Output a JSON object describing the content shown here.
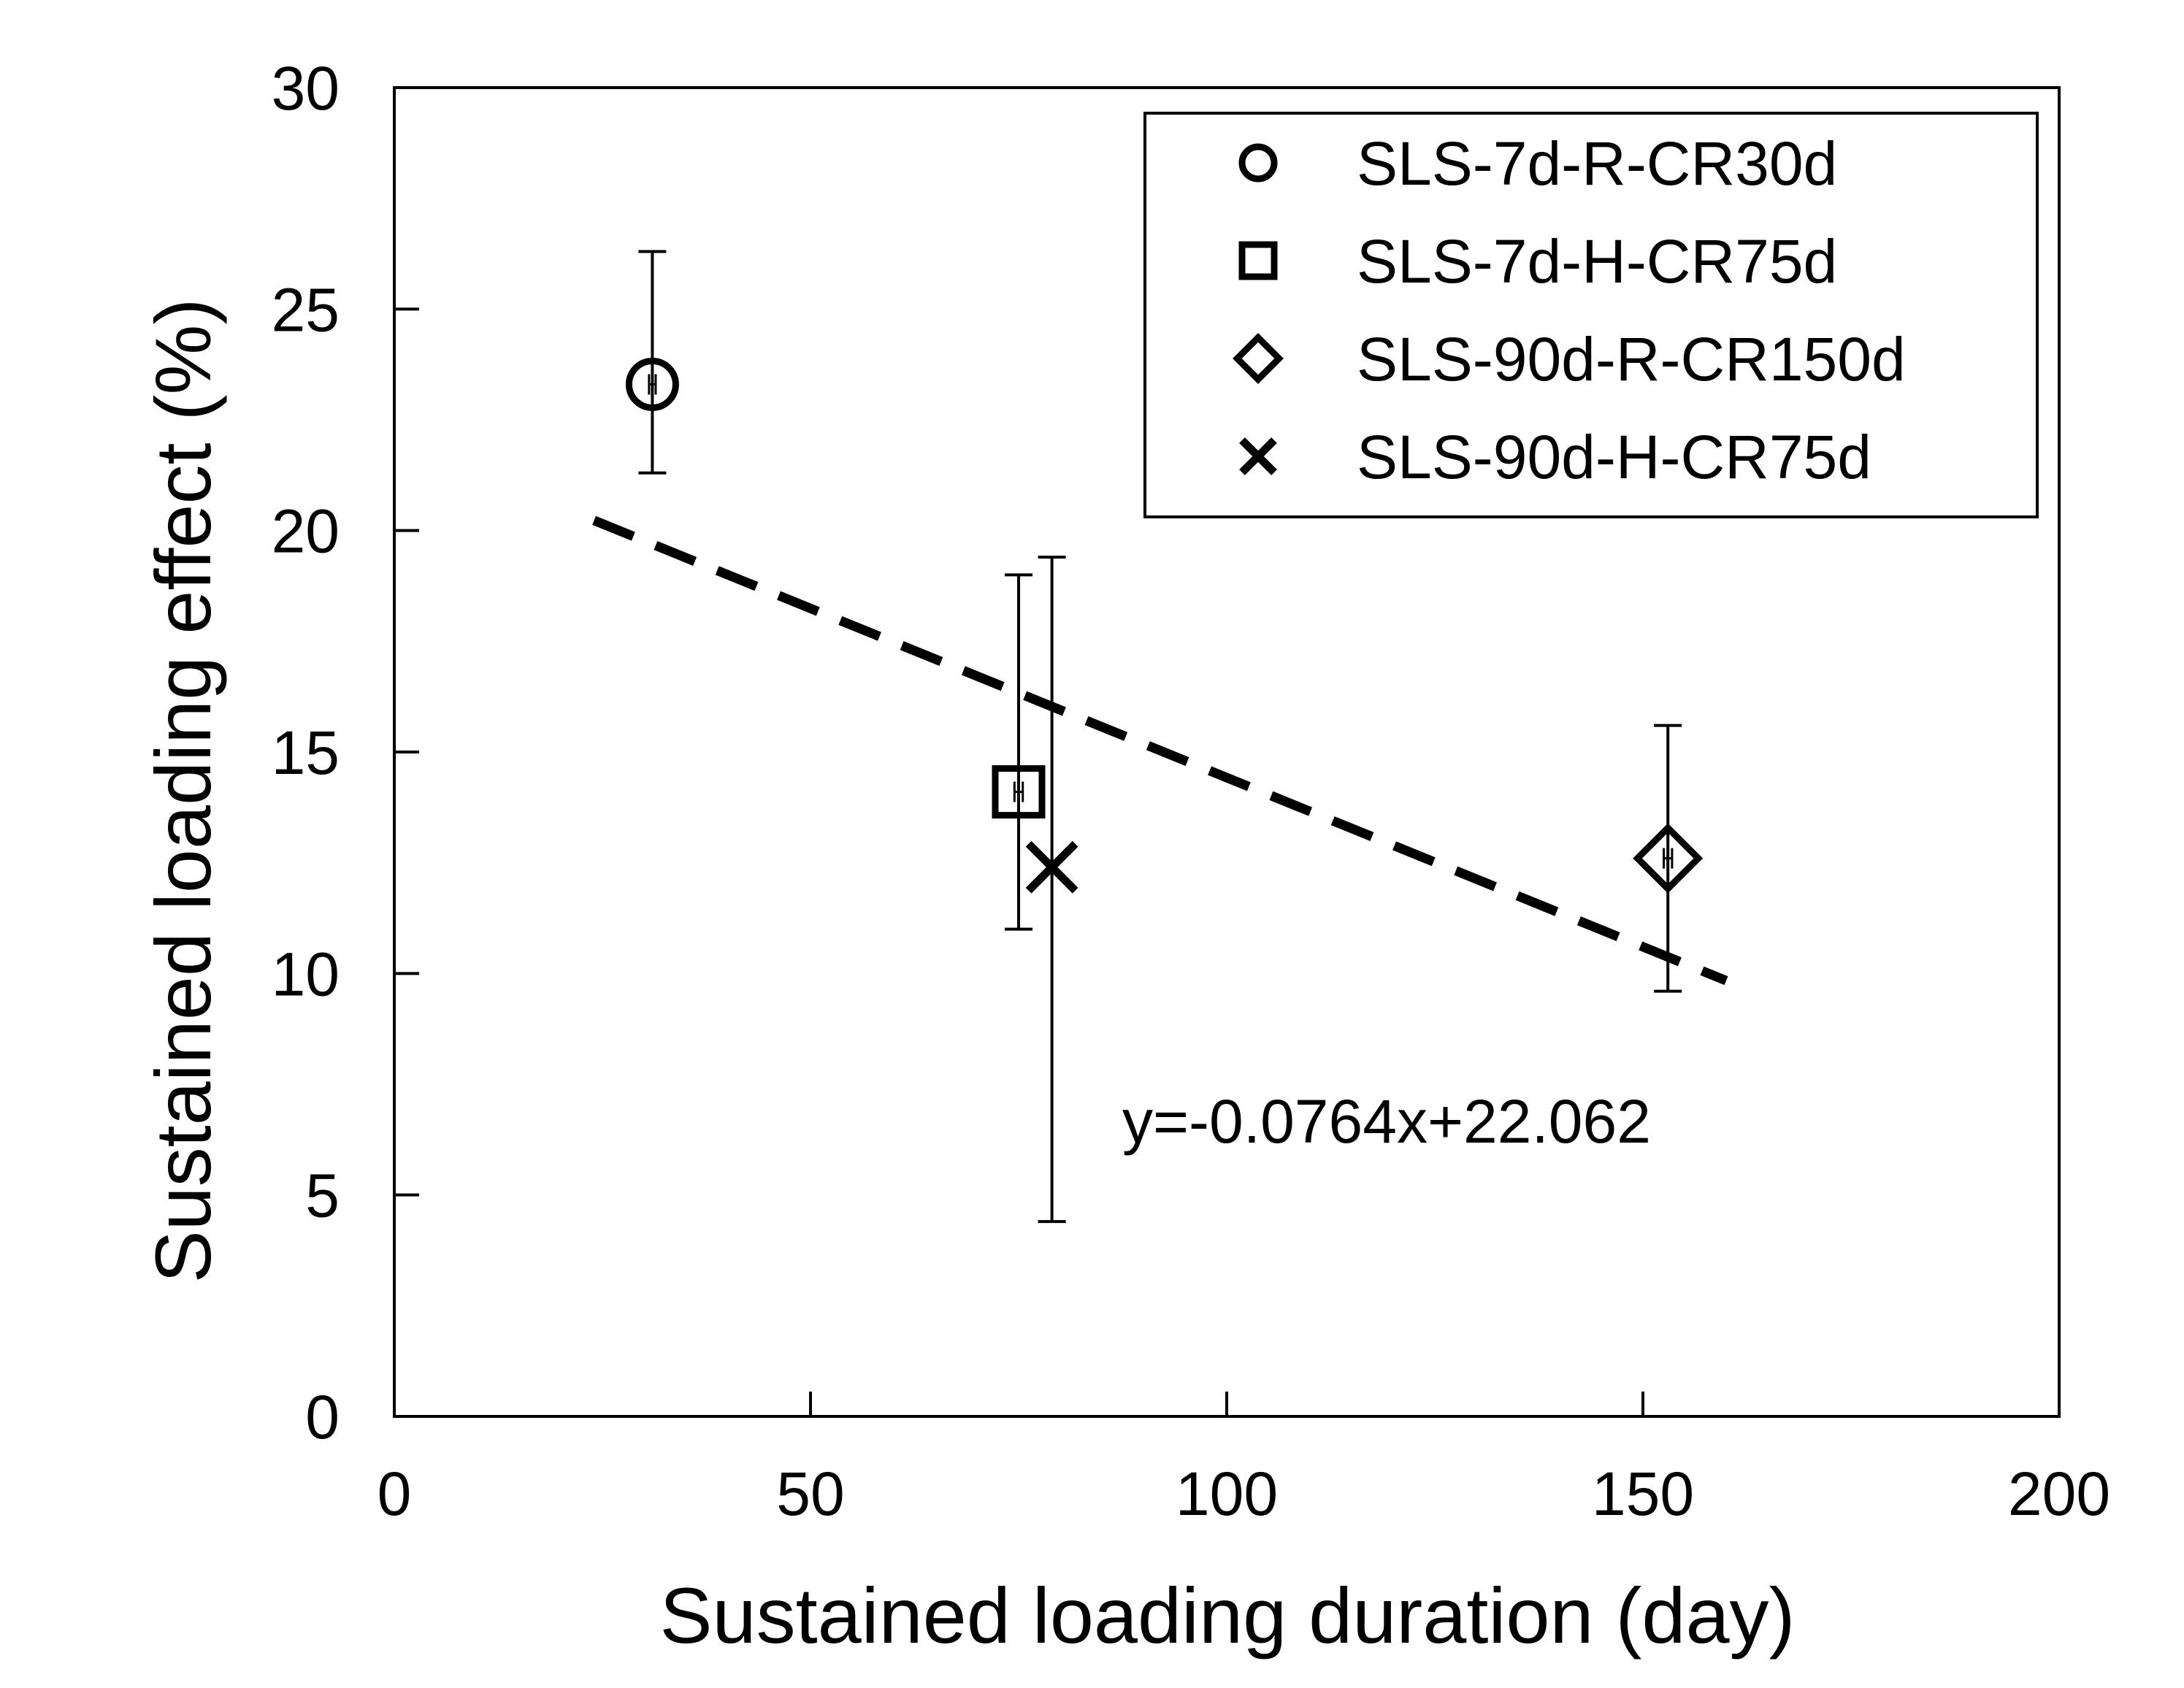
{
  "chart_data": {
    "type": "scatter",
    "title": "",
    "xlabel": "Sustained loading duration (day)",
    "ylabel": "Sustained loading effect (%)",
    "xlim": [
      0,
      200
    ],
    "ylim": [
      0,
      30
    ],
    "xticks": [
      0,
      50,
      100,
      150,
      200
    ],
    "yticks": [
      0,
      5,
      10,
      15,
      20,
      25,
      30
    ],
    "grid": false,
    "legend_position": "top-right",
    "series": [
      {
        "name": "SLS-7d-R-CR30d",
        "marker": "circle",
        "x": 31,
        "y": 23.3,
        "yerr_low": 21.3,
        "yerr_high": 26.3,
        "xerr_low": 30.6,
        "xerr_high": 31.4
      },
      {
        "name": "SLS-7d-H-CR75d",
        "marker": "square",
        "x": 75,
        "y": 14.1,
        "yerr_low": 11.0,
        "yerr_high": 19.0,
        "xerr_low": 74.5,
        "xerr_high": 75.5
      },
      {
        "name": "SLS-90d-R-CR150d",
        "marker": "diamond",
        "x": 153,
        "y": 12.6,
        "yerr_low": 9.6,
        "yerr_high": 15.6,
        "xerr_low": 152.5,
        "xerr_high": 153.5
      },
      {
        "name": "SLS-90d-H-CR75d",
        "marker": "x",
        "x": 79,
        "y": 12.4,
        "yerr_low": 4.4,
        "yerr_high": 19.4
      }
    ],
    "trendline": {
      "slope": -0.0764,
      "intercept": 22.062,
      "x_range": [
        24,
        160
      ],
      "style": "dashed",
      "equation_label": "y=-0.0764x+22.062"
    }
  }
}
